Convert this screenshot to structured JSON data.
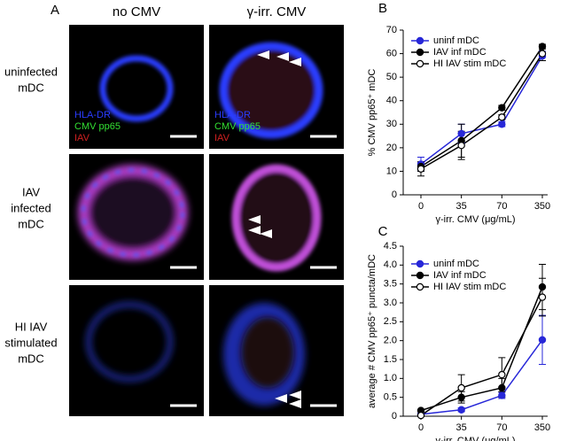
{
  "panel_a": {
    "panel_label": "A",
    "columns": [
      "no CMV",
      "γ-irr. CMV"
    ],
    "rows": [
      [
        "uninfected",
        "mDC"
      ],
      [
        "IAV",
        "infected",
        "mDC"
      ],
      [
        "HI IAV",
        "stimulated",
        "mDC"
      ]
    ],
    "stains": [
      "HLA-DR",
      "CMV pp65",
      "IAV"
    ]
  },
  "chart_data": [
    {
      "type": "line",
      "panel_label": "B",
      "xlabel": "γ-irr. CMV (μg/mL)",
      "ylabel": "% CMV pp65⁺ mDC",
      "categories": [
        "0",
        "35",
        "70",
        "350"
      ],
      "ylim": [
        0,
        70
      ],
      "yticks": [
        0,
        10,
        20,
        30,
        40,
        50,
        60,
        70
      ],
      "legend": "upper left",
      "series": [
        {
          "name": "uninf mDC",
          "color": "#2727d8",
          "marker_fill": "#2727d8",
          "values": [
            13,
            26,
            30,
            59
          ],
          "errors": [
            3,
            4,
            1,
            2
          ]
        },
        {
          "name": "IAV inf mDC",
          "color": "#000000",
          "marker_fill": "#000000",
          "values": [
            12,
            23,
            37,
            63
          ],
          "errors": [
            2,
            7,
            1,
            1
          ]
        },
        {
          "name": "HI IAV stim mDC",
          "color": "#000000",
          "marker_fill": "#ffffff",
          "values": [
            11,
            21,
            33,
            60
          ],
          "errors": [
            3,
            6,
            1,
            3
          ]
        }
      ]
    },
    {
      "type": "line",
      "panel_label": "C",
      "xlabel": "γ-irr. CMV (μg/mL)",
      "ylabel": "average # CMV pp65⁺ puncta/mDC",
      "categories": [
        "0",
        "35",
        "70",
        "350"
      ],
      "ylim": [
        0,
        4.5
      ],
      "yticks": [
        0,
        0.5,
        {
          "value": 1,
          "label": "1.0"
        },
        1.5,
        {
          "value": 2,
          "label": "2.0"
        },
        2.5,
        {
          "value": 3,
          "label": "3.0"
        },
        3.5,
        {
          "value": 4,
          "label": "4.0"
        },
        4.5
      ],
      "legend": "upper left",
      "series": [
        {
          "name": "uninf mDC",
          "color": "#2727d8",
          "marker_fill": "#2727d8",
          "values": [
            0.05,
            0.17,
            0.55,
            2.02
          ],
          "errors": [
            0.02,
            0.05,
            0.08,
            0.65
          ]
        },
        {
          "name": "IAV inf mDC",
          "color": "#000000",
          "marker_fill": "#000000",
          "values": [
            0.15,
            0.5,
            0.75,
            3.42
          ],
          "errors": [
            0.03,
            0.15,
            0.25,
            0.6
          ]
        },
        {
          "name": "HI IAV stim mDC",
          "color": "#000000",
          "marker_fill": "#ffffff",
          "values": [
            0.02,
            0.75,
            1.1,
            3.15
          ],
          "errors": [
            0.03,
            0.35,
            0.45,
            0.5
          ]
        }
      ]
    }
  ]
}
